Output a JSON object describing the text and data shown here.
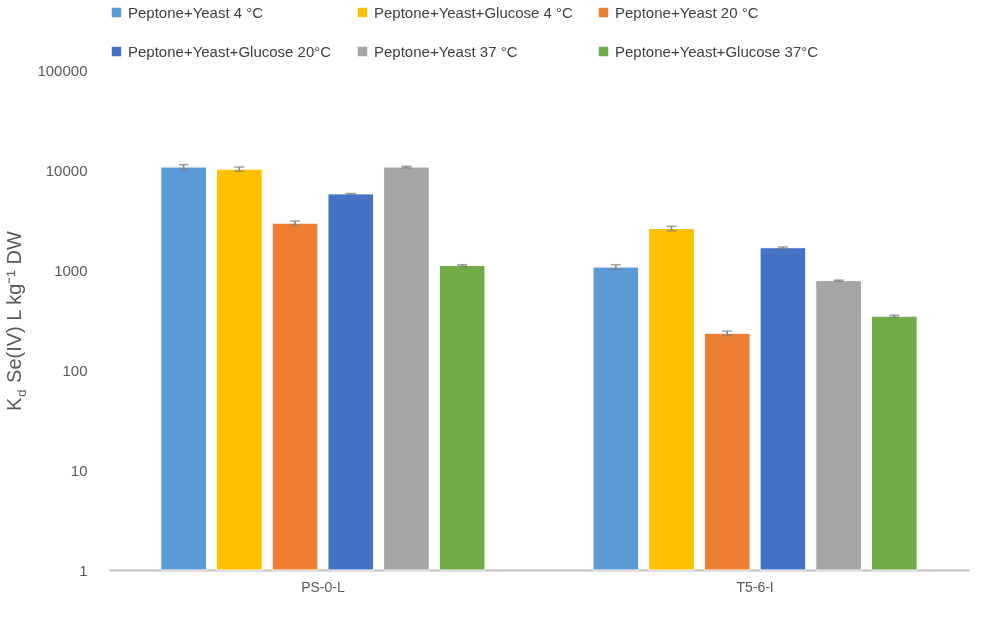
{
  "chart_data": {
    "type": "bar",
    "ylabel": "K$_{d}$ Se(IV) L kg⁻¹ DW",
    "categories": [
      "PS-0-L",
      "T5-6-I"
    ],
    "series": [
      {
        "name": "Peptone+Yeast 4 °C",
        "color": "#5b9bd5",
        "values": [
          10700,
          1070
        ],
        "errors": [
          600,
          60
        ]
      },
      {
        "name": "Peptone+Yeast+Glucose 4 °C",
        "color": "#ffc000",
        "values": [
          10200,
          2600
        ],
        "errors": [
          500,
          140
        ]
      },
      {
        "name": "Peptone+Yeast 20 °C",
        "color": "#ed7d31",
        "values": [
          2940,
          233
        ],
        "errors": [
          150,
          12
        ]
      },
      {
        "name": "Peptone+Yeast+Glucose 20°C",
        "color": "#4472c4",
        "values": [
          5770,
          1670
        ],
        "errors": [
          50,
          30
        ]
      },
      {
        "name": "Peptone+Yeast 37 °C",
        "color": "#a5a5a5",
        "values": [
          10700,
          784
        ],
        "errors": [
          200,
          10
        ]
      },
      {
        "name": "Peptone+Yeast+Glucose 37°C",
        "color": "#70ad47",
        "values": [
          1110,
          345
        ],
        "errors": [
          20,
          8
        ]
      }
    ],
    "log": "y",
    "ylim": [
      1,
      100000
    ],
    "yticks": [
      1,
      10,
      100,
      1000,
      10000,
      100000
    ],
    "grid": false,
    "legend": "top"
  }
}
